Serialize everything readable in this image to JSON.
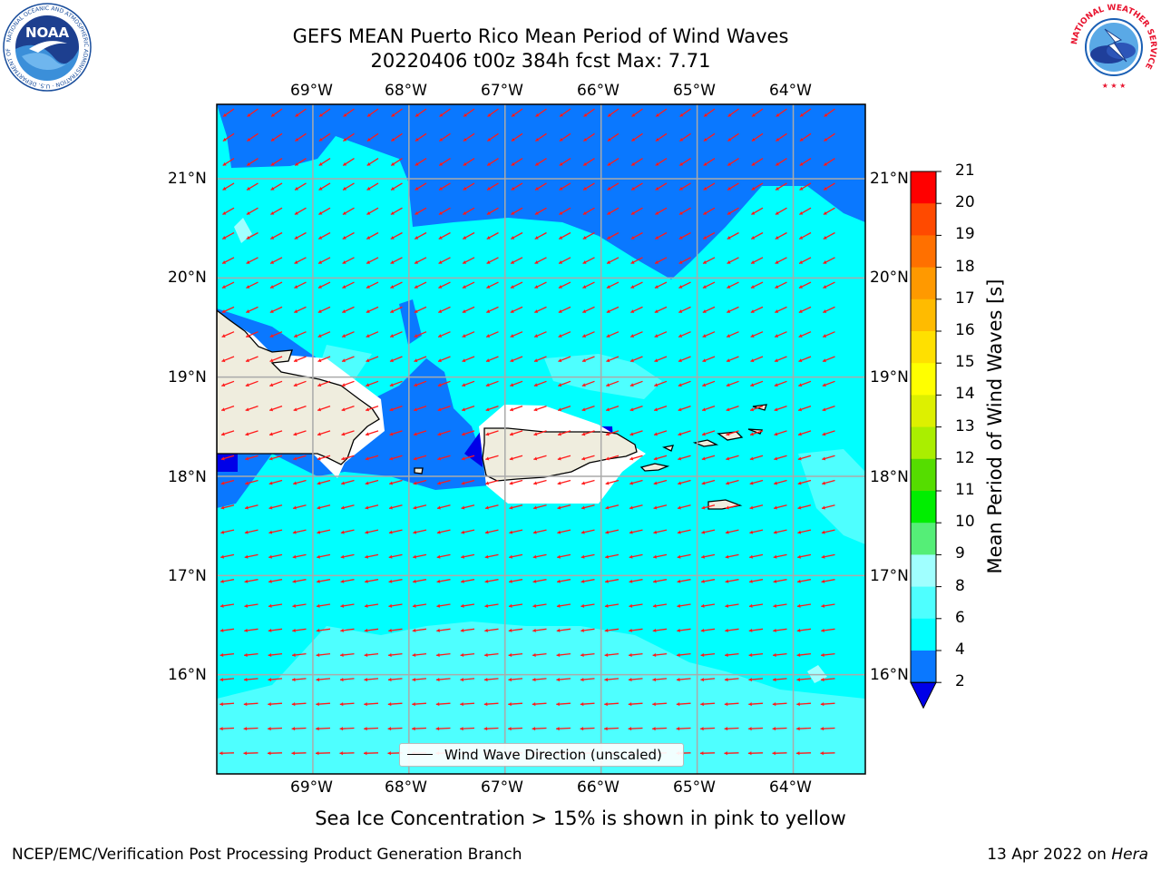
{
  "header": {
    "title_line1": "GEFS MEAN Puerto Rico Mean Period of Wind Waves",
    "title_line2": "20220406 t00z 384h fcst   Max: 7.71"
  },
  "logos": {
    "left": {
      "name": "noaa-logo",
      "text": "NOAA",
      "ring_text": "NATIONAL OCEANIC AND ATMOSPHERIC ADMINISTRATION · U.S. DEPARTMENT OF COMMERCE",
      "color": "#1a4e9c"
    },
    "right": {
      "name": "nws-logo",
      "ring_text": "NATIONAL WEATHER SERVICE",
      "color": "#e8132e"
    }
  },
  "map": {
    "lon_labels": [
      "69°W",
      "68°W",
      "67°W",
      "66°W",
      "65°W",
      "64°W"
    ],
    "lat_labels": [
      "21°N",
      "20°N",
      "19°N",
      "18°N",
      "17°N",
      "16°N"
    ],
    "lon_values": [
      -69,
      -68,
      -67,
      -66,
      -65,
      -64
    ],
    "lat_values": [
      21,
      20,
      19,
      18,
      17,
      16
    ],
    "extent": {
      "lon_min": -70,
      "lon_max": -63.25,
      "lat_min": 15,
      "lat_max": 21.75
    },
    "land_color": "#efedde",
    "arrow_color": "#ff1a1a",
    "wind_direction": "toward west-southwest",
    "legend_label": "Wind Wave Direction (unscaled)"
  },
  "colorbar": {
    "label": "Mean Period of Wind Waves [s]",
    "tick_labels": [
      "21",
      "20",
      "19",
      "18",
      "17",
      "16",
      "15",
      "14",
      "13",
      "12",
      "11",
      "10",
      "9",
      "8",
      "6",
      "4",
      "2"
    ],
    "levels": [
      2,
      4,
      6,
      8,
      9,
      10,
      11,
      12,
      13,
      14,
      15,
      16,
      17,
      18,
      19,
      20,
      21
    ],
    "colors": [
      "#0a78ff",
      "#00ffff",
      "#4effff",
      "#a0ffff",
      "#55ee77",
      "#00ee00",
      "#55dd00",
      "#aaee00",
      "#ddf000",
      "#ffff00",
      "#ffe000",
      "#ffbb00",
      "#ff9900",
      "#ff7000",
      "#ff4a00",
      "#ff0000"
    ],
    "under_color": "#0000e8"
  },
  "notes": {
    "sea_ice": "Sea Ice Concentration > 15% is shown in pink to yellow"
  },
  "footer": {
    "left": "NCEP/EMC/Verification Post Processing Product Generation Branch",
    "right_date": "13 Apr 2022 on ",
    "right_machine": "Hera"
  }
}
